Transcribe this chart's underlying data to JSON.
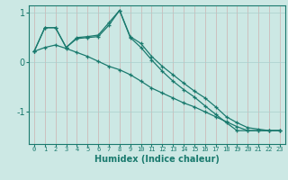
{
  "title": "",
  "xlabel": "Humidex (Indice chaleur)",
  "ylabel": "",
  "bg_color": "#cce8e4",
  "grid_color": "#aacfcc",
  "line_color": "#1a7a6e",
  "x": [
    0,
    1,
    2,
    3,
    4,
    5,
    6,
    7,
    8,
    9,
    10,
    11,
    12,
    13,
    14,
    15,
    16,
    17,
    18,
    19,
    20,
    21,
    22,
    23
  ],
  "line1": [
    0.22,
    0.7,
    0.7,
    0.3,
    0.5,
    0.52,
    0.55,
    0.8,
    1.05,
    0.52,
    0.38,
    0.12,
    -0.08,
    -0.25,
    -0.42,
    -0.58,
    -0.72,
    -0.9,
    -1.1,
    -1.22,
    -1.32,
    -1.35,
    -1.38,
    -1.38
  ],
  "line2": [
    0.22,
    0.7,
    0.7,
    0.3,
    0.48,
    0.5,
    0.52,
    0.75,
    1.05,
    0.5,
    0.3,
    0.05,
    -0.18,
    -0.38,
    -0.55,
    -0.7,
    -0.88,
    -1.05,
    -1.22,
    -1.38,
    -1.38,
    -1.38,
    -1.38,
    -1.38
  ],
  "line3": [
    0.22,
    0.3,
    0.35,
    0.28,
    0.2,
    0.12,
    0.02,
    -0.08,
    -0.15,
    -0.25,
    -0.38,
    -0.52,
    -0.62,
    -0.72,
    -0.82,
    -0.9,
    -1.0,
    -1.1,
    -1.2,
    -1.3,
    -1.38,
    -1.38,
    -1.38,
    -1.38
  ],
  "ylim": [
    -1.65,
    1.15
  ],
  "yticks": [
    -1,
    0,
    1
  ],
  "xlim": [
    -0.5,
    23.5
  ],
  "figsize": [
    3.2,
    2.0
  ],
  "dpi": 100
}
